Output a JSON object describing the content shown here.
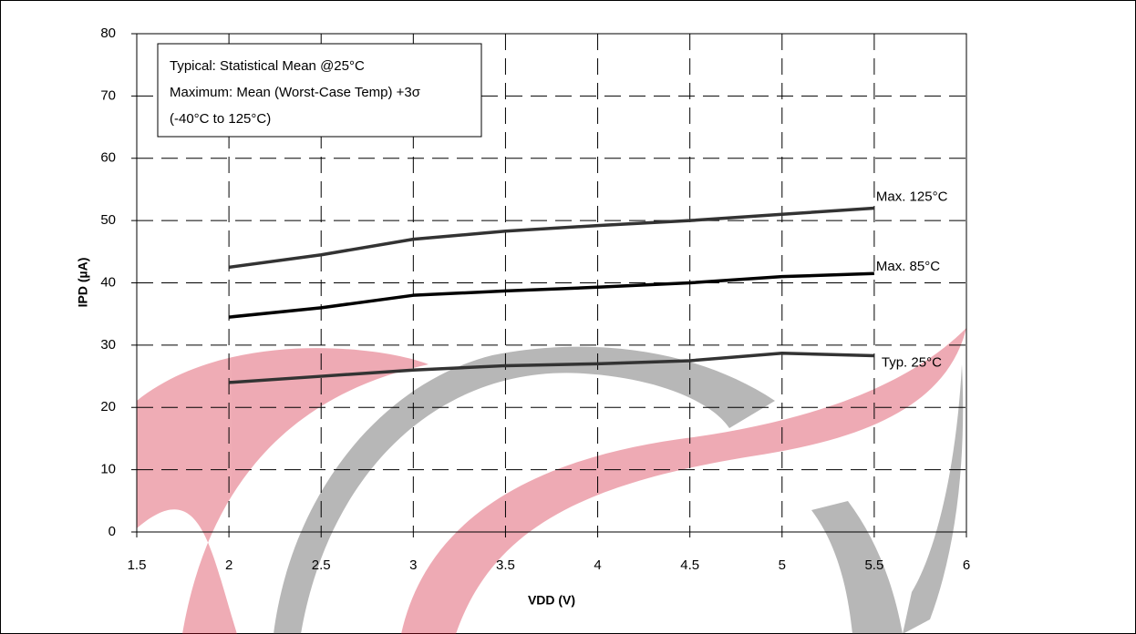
{
  "chart_data": {
    "type": "line",
    "x_label": "VDD (V)",
    "y_label": "IPD (µA)",
    "annotation": [
      "Typical: Statistical Mean @25°C",
      "Maximum: Mean (Worst-Case Temp) +3σ",
      "(-40°C to 125°C)"
    ],
    "x": [
      2,
      2.5,
      3,
      3.5,
      4,
      4.5,
      5,
      5.5
    ],
    "series": [
      {
        "name": "Max. 125°C",
        "color": "#333333",
        "values": [
          42.5,
          44.5,
          47,
          48.3,
          49.2,
          50,
          51,
          52
        ]
      },
      {
        "name": "Max. 85°C",
        "color": "#000000",
        "values": [
          34.5,
          36,
          38,
          38.7,
          39.3,
          40,
          41,
          41.5
        ]
      },
      {
        "name": "Typ. 25°C",
        "color": "#333333",
        "values": [
          24,
          25,
          26,
          26.7,
          27,
          27.5,
          28.7,
          28.3
        ]
      }
    ],
    "xlim": [
      1.5,
      6
    ],
    "xticks": [
      1.5,
      2,
      2.5,
      3,
      3.5,
      4,
      4.5,
      5,
      5.5,
      6
    ],
    "ylim": [
      0,
      80
    ],
    "yticks": [
      0,
      10,
      20,
      30,
      40,
      50,
      60,
      70,
      80
    ],
    "grid": true
  }
}
